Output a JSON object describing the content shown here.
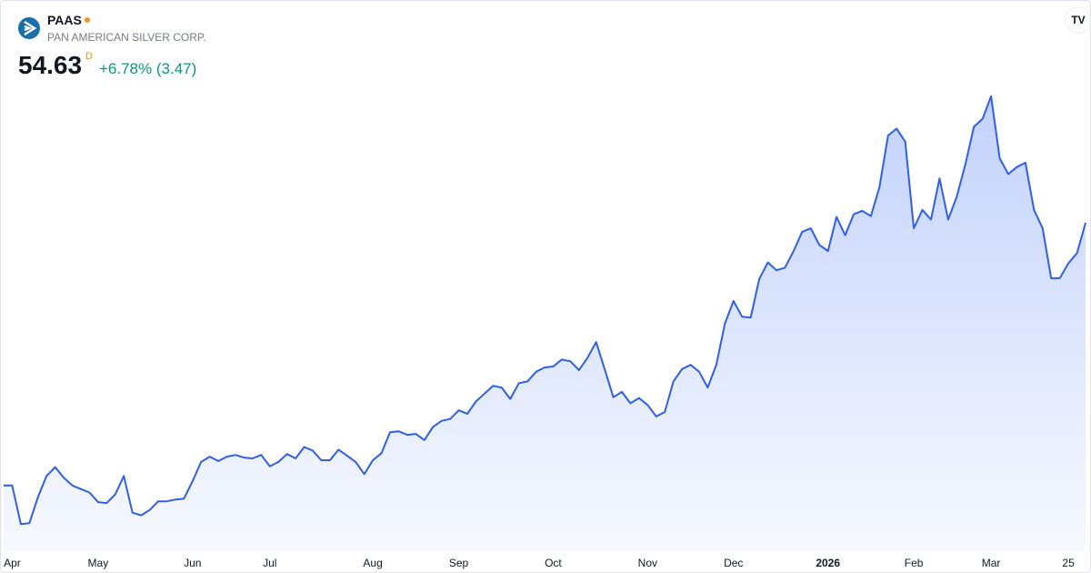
{
  "header": {
    "symbol": "PAAS",
    "name": "PAN AMERICAN SILVER CORP.",
    "price": "54.63",
    "interval": "D",
    "change": "+6.78% (3.47)"
  },
  "chart_data": {
    "type": "area",
    "categories": [
      null,
      "Apr",
      null,
      null,
      null,
      null,
      null,
      null,
      null,
      null,
      null,
      "May",
      null,
      null,
      null,
      null,
      null,
      null,
      null,
      null,
      null,
      null,
      "Jun",
      null,
      null,
      null,
      null,
      null,
      null,
      null,
      null,
      "Jul",
      null,
      null,
      null,
      null,
      null,
      null,
      null,
      null,
      null,
      null,
      null,
      "Aug",
      null,
      null,
      null,
      null,
      null,
      null,
      null,
      null,
      null,
      "Sep",
      null,
      null,
      null,
      null,
      null,
      null,
      null,
      null,
      null,
      null,
      "Oct",
      null,
      null,
      null,
      null,
      null,
      null,
      null,
      null,
      null,
      null,
      "Nov",
      null,
      null,
      null,
      null,
      null,
      null,
      null,
      null,
      null,
      "Dec",
      null,
      null,
      null,
      null,
      null,
      null,
      null,
      null,
      null,
      null,
      "2026",
      null,
      null,
      null,
      null,
      null,
      null,
      null,
      null,
      null,
      "Feb",
      null,
      null,
      null,
      null,
      null,
      null,
      null,
      null,
      "Mar",
      null,
      null,
      null,
      null,
      null,
      null,
      null,
      null,
      "25",
      null,
      null
    ],
    "values": [
      24.6,
      24.6,
      20.2,
      20.3,
      23.3,
      25.7,
      26.7,
      25.5,
      24.6,
      24.2,
      23.8,
      22.7,
      22.6,
      23.6,
      25.7,
      21.5,
      21.2,
      21.8,
      22.8,
      22.8,
      23.0,
      23.1,
      25.1,
      27.3,
      27.9,
      27.4,
      27.9,
      28.1,
      27.8,
      27.7,
      28.1,
      26.8,
      27.3,
      28.2,
      27.7,
      29.0,
      28.6,
      27.5,
      27.5,
      28.7,
      28.0,
      27.3,
      25.9,
      27.5,
      28.3,
      30.7,
      30.8,
      30.4,
      30.5,
      29.8,
      31.3,
      32.0,
      32.2,
      33.2,
      32.8,
      34.2,
      35.1,
      36.0,
      35.8,
      34.5,
      36.3,
      36.5,
      37.6,
      38.1,
      38.2,
      39.0,
      38.8,
      37.8,
      39.2,
      41.0,
      37.9,
      34.7,
      35.3,
      34.0,
      34.6,
      33.8,
      32.5,
      33.0,
      36.5,
      37.9,
      38.4,
      37.6,
      35.8,
      38.4,
      43.1,
      45.7,
      43.9,
      43.8,
      48.2,
      50.1,
      49.2,
      49.5,
      51.4,
      53.6,
      54.0,
      52.1,
      51.4,
      55.3,
      53.2,
      55.6,
      56.0,
      55.4,
      58.7,
      64.6,
      65.4,
      63.9,
      54.0,
      56.1,
      55.0,
      59.7,
      55.0,
      57.6,
      61.3,
      65.6,
      66.5,
      69.1,
      62.0,
      60.2,
      61.0,
      61.5,
      56.1,
      54.0,
      48.3,
      48.3,
      50.0,
      51.16,
      54.63
    ],
    "color": "#2f5fe8",
    "ylim": [
      17.1,
      75
    ]
  }
}
